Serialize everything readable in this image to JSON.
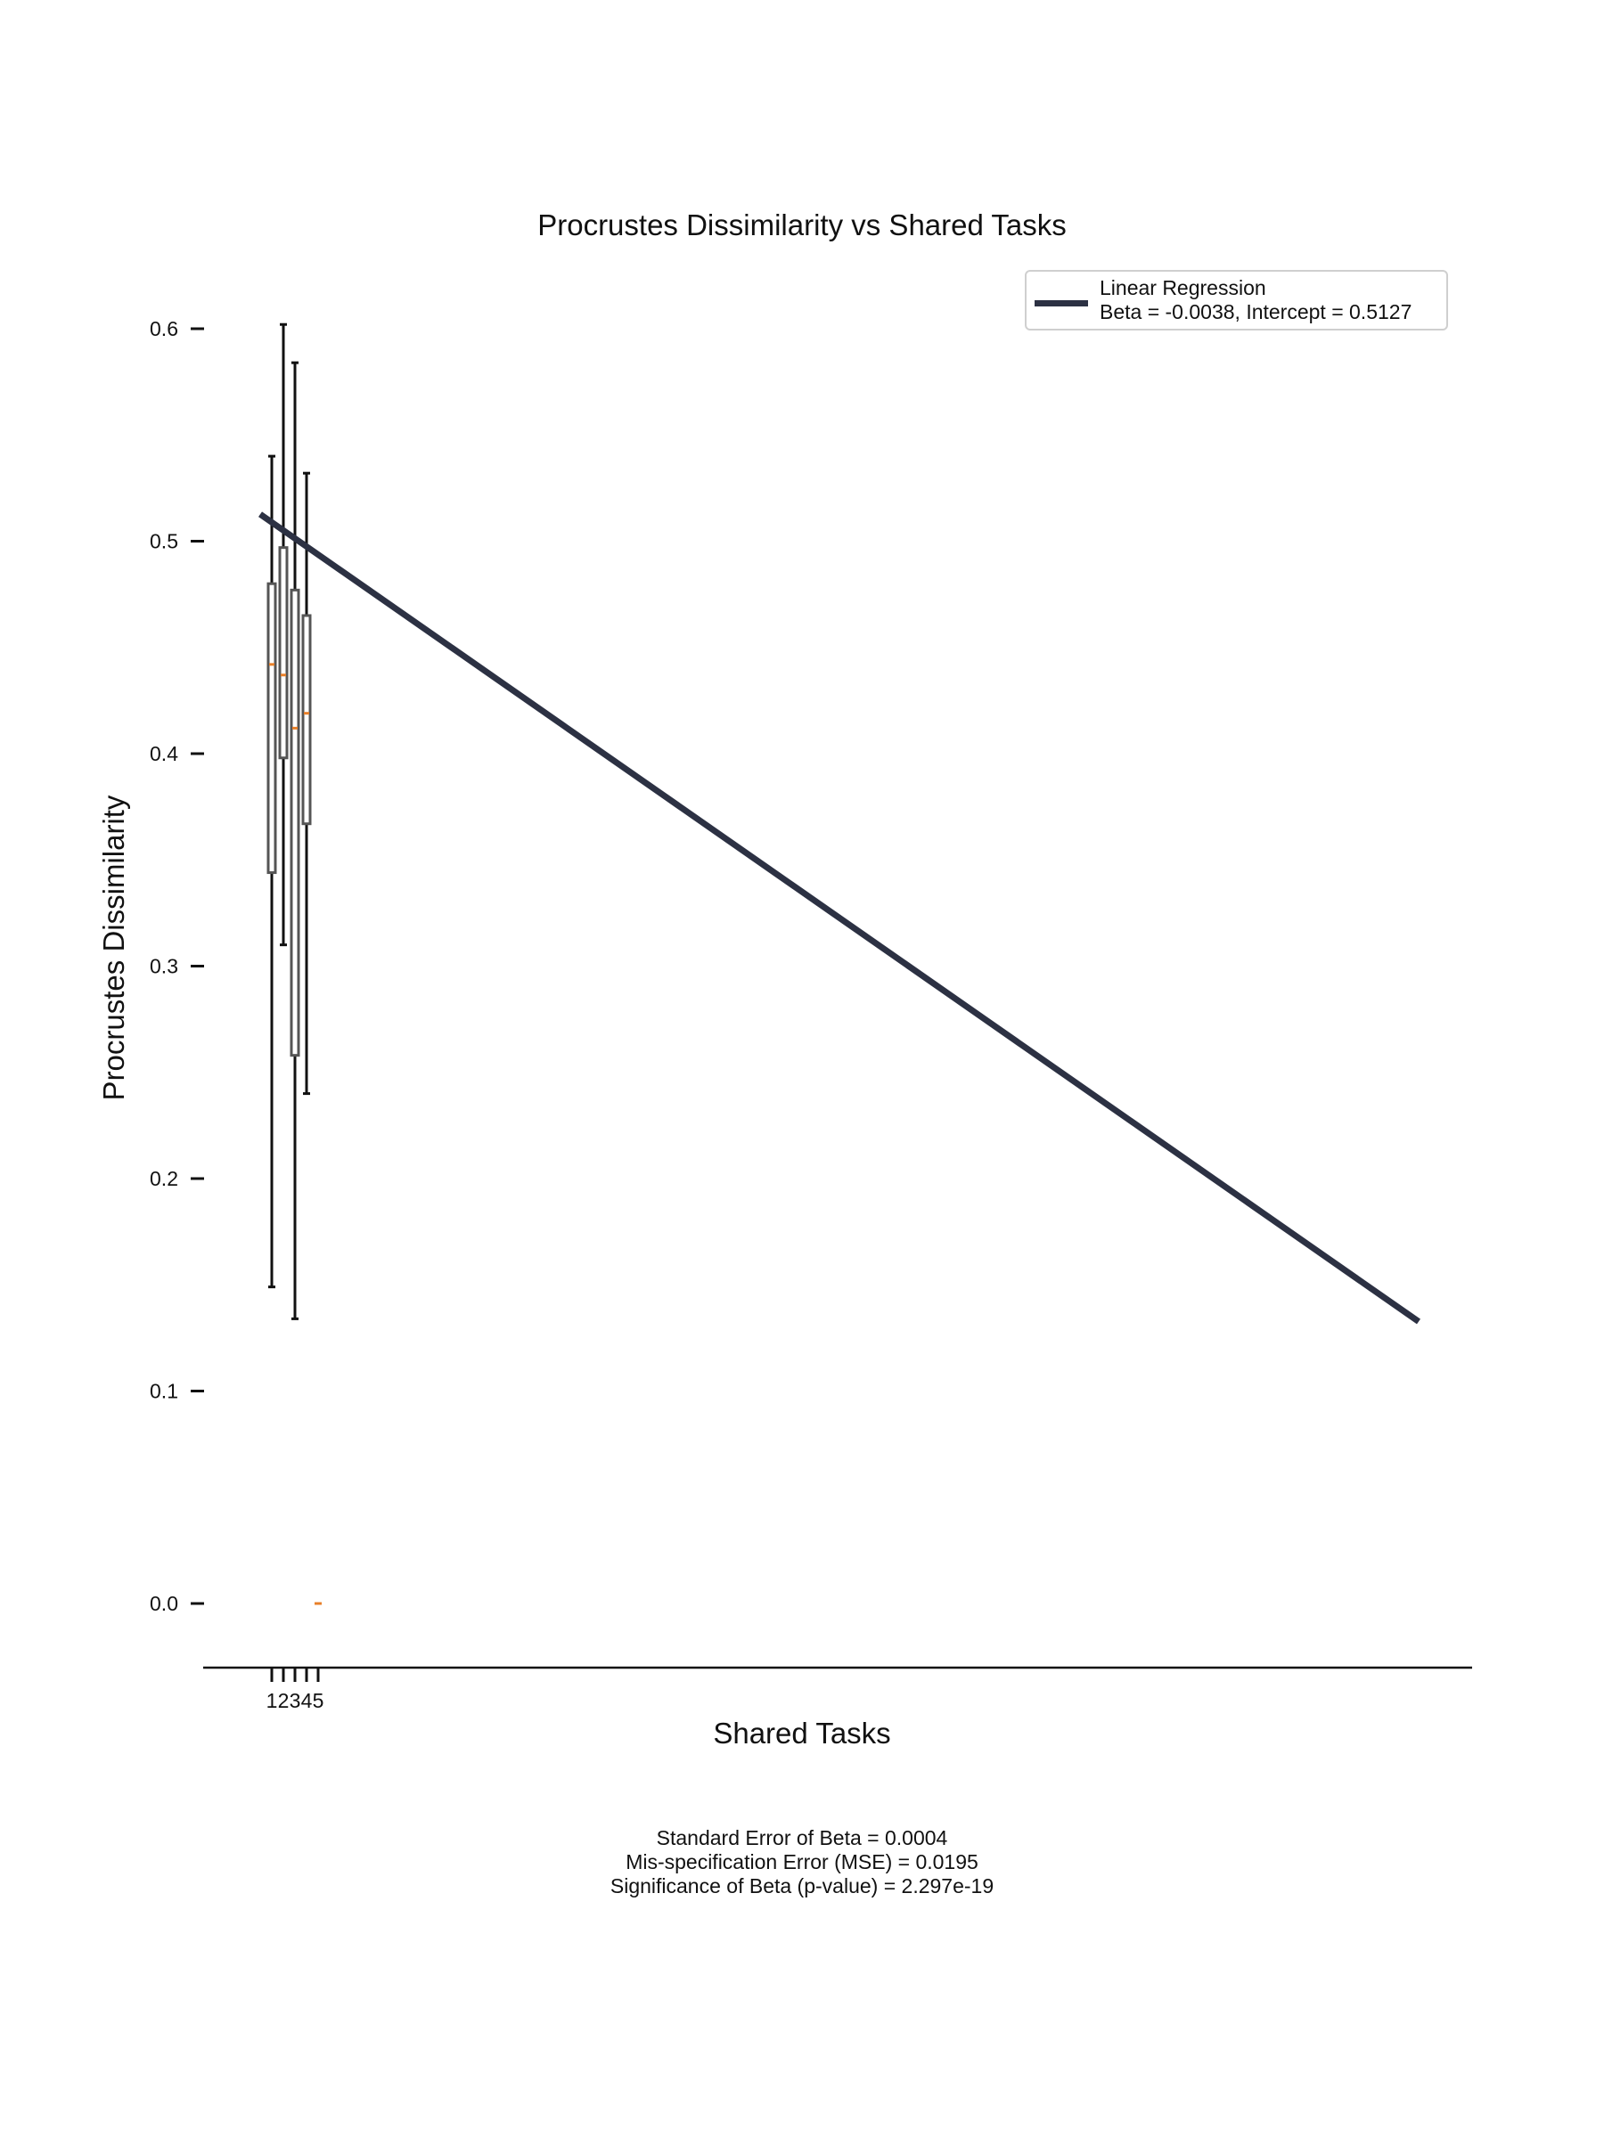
{
  "chart_data": {
    "type": "box",
    "title": "Procrustes Dissimilarity vs Shared Tasks",
    "xlabel": "Shared Tasks",
    "ylabel": "Procrustes Dissimilarity",
    "xlim": [
      0.0,
      100.0
    ],
    "ylim": [
      -0.03,
      0.63
    ],
    "x_ticks": [
      1,
      2,
      3,
      4,
      5
    ],
    "x_tick_labels": [
      "1",
      "2",
      "3",
      "4",
      "5"
    ],
    "y_ticks": [
      0.0,
      0.1,
      0.2,
      0.3,
      0.4,
      0.5,
      0.6
    ],
    "y_tick_labels": [
      "0.0",
      "0.1",
      "0.2",
      "0.3",
      "0.4",
      "0.5",
      "0.6"
    ],
    "grid": false,
    "boxes": [
      {
        "x": 1,
        "whisker_low": 0.149,
        "q1": 0.344,
        "median": 0.442,
        "q3": 0.48,
        "whisker_high": 0.54
      },
      {
        "x": 2,
        "whisker_low": 0.31,
        "q1": 0.398,
        "median": 0.437,
        "q3": 0.497,
        "whisker_high": 0.602
      },
      {
        "x": 3,
        "whisker_low": 0.134,
        "q1": 0.258,
        "median": 0.412,
        "q3": 0.477,
        "whisker_high": 0.584
      },
      {
        "x": 4,
        "whisker_low": 0.24,
        "q1": 0.367,
        "median": 0.419,
        "q3": 0.465,
        "whisker_high": 0.532
      },
      {
        "x": 5,
        "median": 0.0
      }
    ],
    "regression": {
      "type": "line",
      "name": "Linear Regression\nBeta = -0.0038, Intercept = 0.5127",
      "x": [
        0,
        100
      ],
      "y": [
        0.5127,
        0.1327
      ]
    },
    "legend_position": "top-right",
    "colors": {
      "regression": "#2c3143",
      "box": "#555555",
      "whisker": "#111111",
      "median": "#e8802a",
      "axis": "#111111"
    }
  },
  "legend": {
    "line1": "Linear Regression",
    "line2": "Beta = -0.0038, Intercept = 0.5127"
  },
  "stats": {
    "line1": "Standard Error of Beta = 0.0004",
    "line2": "Mis-specification Error (MSE) = 0.0195",
    "line3": "Significance of Beta (p-value) = 2.297e-19"
  }
}
